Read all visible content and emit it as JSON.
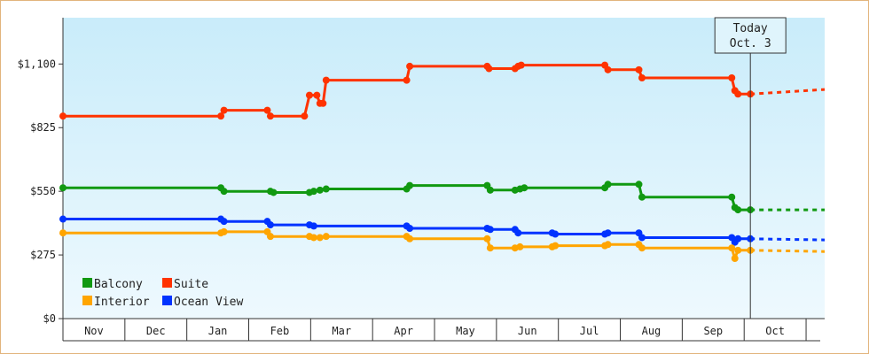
{
  "chart_data": {
    "type": "line",
    "title": "",
    "xlabel": "",
    "ylabel": "",
    "ylim": [
      0,
      1300
    ],
    "yticks": [
      {
        "value": 0,
        "label": "$0"
      },
      {
        "value": 275,
        "label": "$275"
      },
      {
        "value": 550,
        "label": "$550"
      },
      {
        "value": 825,
        "label": "$825"
      },
      {
        "value": 1100,
        "label": "$1,100"
      }
    ],
    "xlim": [
      0,
      12.3
    ],
    "x_unit": "months from Nov 1",
    "months": [
      "Nov",
      "Dec",
      "Jan",
      "Feb",
      "Mar",
      "Apr",
      "May",
      "Jun",
      "Jul",
      "Aug",
      "Sep",
      "Oct"
    ],
    "today": {
      "x": 11.1,
      "line1": "Today",
      "line2": "Oct. 3"
    },
    "grid": false,
    "legend_position": "bottom-left",
    "series": [
      {
        "name": "Suite",
        "color": "#ff3300",
        "points": [
          [
            0,
            875
          ],
          [
            2.55,
            875
          ],
          [
            2.6,
            900
          ],
          [
            3.3,
            900
          ],
          [
            3.35,
            875
          ],
          [
            3.9,
            875
          ],
          [
            3.98,
            965
          ],
          [
            4.1,
            965
          ],
          [
            4.15,
            930
          ],
          [
            4.2,
            930
          ],
          [
            4.25,
            1030
          ],
          [
            5.55,
            1030
          ],
          [
            5.6,
            1090
          ],
          [
            6.85,
            1090
          ],
          [
            6.88,
            1080
          ],
          [
            7.3,
            1080
          ],
          [
            7.35,
            1090
          ],
          [
            7.4,
            1095
          ],
          [
            8.75,
            1095
          ],
          [
            8.8,
            1075
          ],
          [
            9.3,
            1075
          ],
          [
            9.35,
            1040
          ],
          [
            10.8,
            1040
          ],
          [
            10.85,
            985
          ],
          [
            10.9,
            970
          ],
          [
            11.0,
            970
          ],
          [
            11.1,
            970
          ]
        ],
        "forecast": [
          [
            11.1,
            970
          ],
          [
            12.3,
            990
          ]
        ]
      },
      {
        "name": "Balcony",
        "color": "#119911",
        "points": [
          [
            0,
            565
          ],
          [
            2.55,
            565
          ],
          [
            2.6,
            550
          ],
          [
            3.35,
            550
          ],
          [
            3.4,
            545
          ],
          [
            3.98,
            545
          ],
          [
            4.05,
            550
          ],
          [
            4.15,
            555
          ],
          [
            4.25,
            560
          ],
          [
            5.55,
            560
          ],
          [
            5.6,
            575
          ],
          [
            6.85,
            575
          ],
          [
            6.9,
            555
          ],
          [
            7.3,
            555
          ],
          [
            7.38,
            560
          ],
          [
            7.45,
            565
          ],
          [
            8.75,
            565
          ],
          [
            8.8,
            580
          ],
          [
            9.3,
            580
          ],
          [
            9.35,
            525
          ],
          [
            10.8,
            525
          ],
          [
            10.85,
            480
          ],
          [
            10.9,
            470
          ],
          [
            11.1,
            470
          ]
        ],
        "forecast": [
          [
            11.1,
            470
          ],
          [
            12.3,
            470
          ]
        ]
      },
      {
        "name": "Ocean View",
        "color": "#0033ff",
        "points": [
          [
            0,
            430
          ],
          [
            2.55,
            430
          ],
          [
            2.6,
            420
          ],
          [
            3.3,
            420
          ],
          [
            3.35,
            405
          ],
          [
            3.98,
            405
          ],
          [
            4.05,
            400
          ],
          [
            4.1,
            400
          ],
          [
            5.55,
            400
          ],
          [
            5.6,
            390
          ],
          [
            6.85,
            390
          ],
          [
            6.9,
            385
          ],
          [
            7.3,
            385
          ],
          [
            7.35,
            370
          ],
          [
            7.4,
            370
          ],
          [
            7.9,
            370
          ],
          [
            7.95,
            365
          ],
          [
            8.75,
            365
          ],
          [
            8.8,
            370
          ],
          [
            9.3,
            370
          ],
          [
            9.35,
            350
          ],
          [
            10.8,
            350
          ],
          [
            10.85,
            330
          ],
          [
            10.9,
            345
          ],
          [
            11.1,
            345
          ]
        ],
        "forecast": [
          [
            11.1,
            345
          ],
          [
            12.3,
            340
          ]
        ]
      },
      {
        "name": "Interior",
        "color": "#ffa500",
        "points": [
          [
            0,
            370
          ],
          [
            2.55,
            370
          ],
          [
            2.6,
            375
          ],
          [
            3.3,
            375
          ],
          [
            3.35,
            355
          ],
          [
            3.98,
            355
          ],
          [
            4.05,
            350
          ],
          [
            4.15,
            350
          ],
          [
            4.25,
            355
          ],
          [
            5.55,
            355
          ],
          [
            5.6,
            345
          ],
          [
            6.85,
            345
          ],
          [
            6.9,
            305
          ],
          [
            7.3,
            305
          ],
          [
            7.38,
            310
          ],
          [
            7.45,
            310
          ],
          [
            7.9,
            310
          ],
          [
            7.95,
            315
          ],
          [
            8.75,
            315
          ],
          [
            8.8,
            320
          ],
          [
            9.3,
            320
          ],
          [
            9.35,
            305
          ],
          [
            10.8,
            305
          ],
          [
            10.85,
            260
          ],
          [
            10.9,
            295
          ],
          [
            11.1,
            295
          ]
        ],
        "forecast": [
          [
            11.1,
            295
          ],
          [
            12.3,
            290
          ]
        ]
      }
    ],
    "legend": [
      {
        "name": "Balcony",
        "color": "#119911"
      },
      {
        "name": "Suite",
        "color": "#ff3300"
      },
      {
        "name": "Interior",
        "color": "#ffa500"
      },
      {
        "name": "Ocean View",
        "color": "#0033ff"
      }
    ]
  }
}
